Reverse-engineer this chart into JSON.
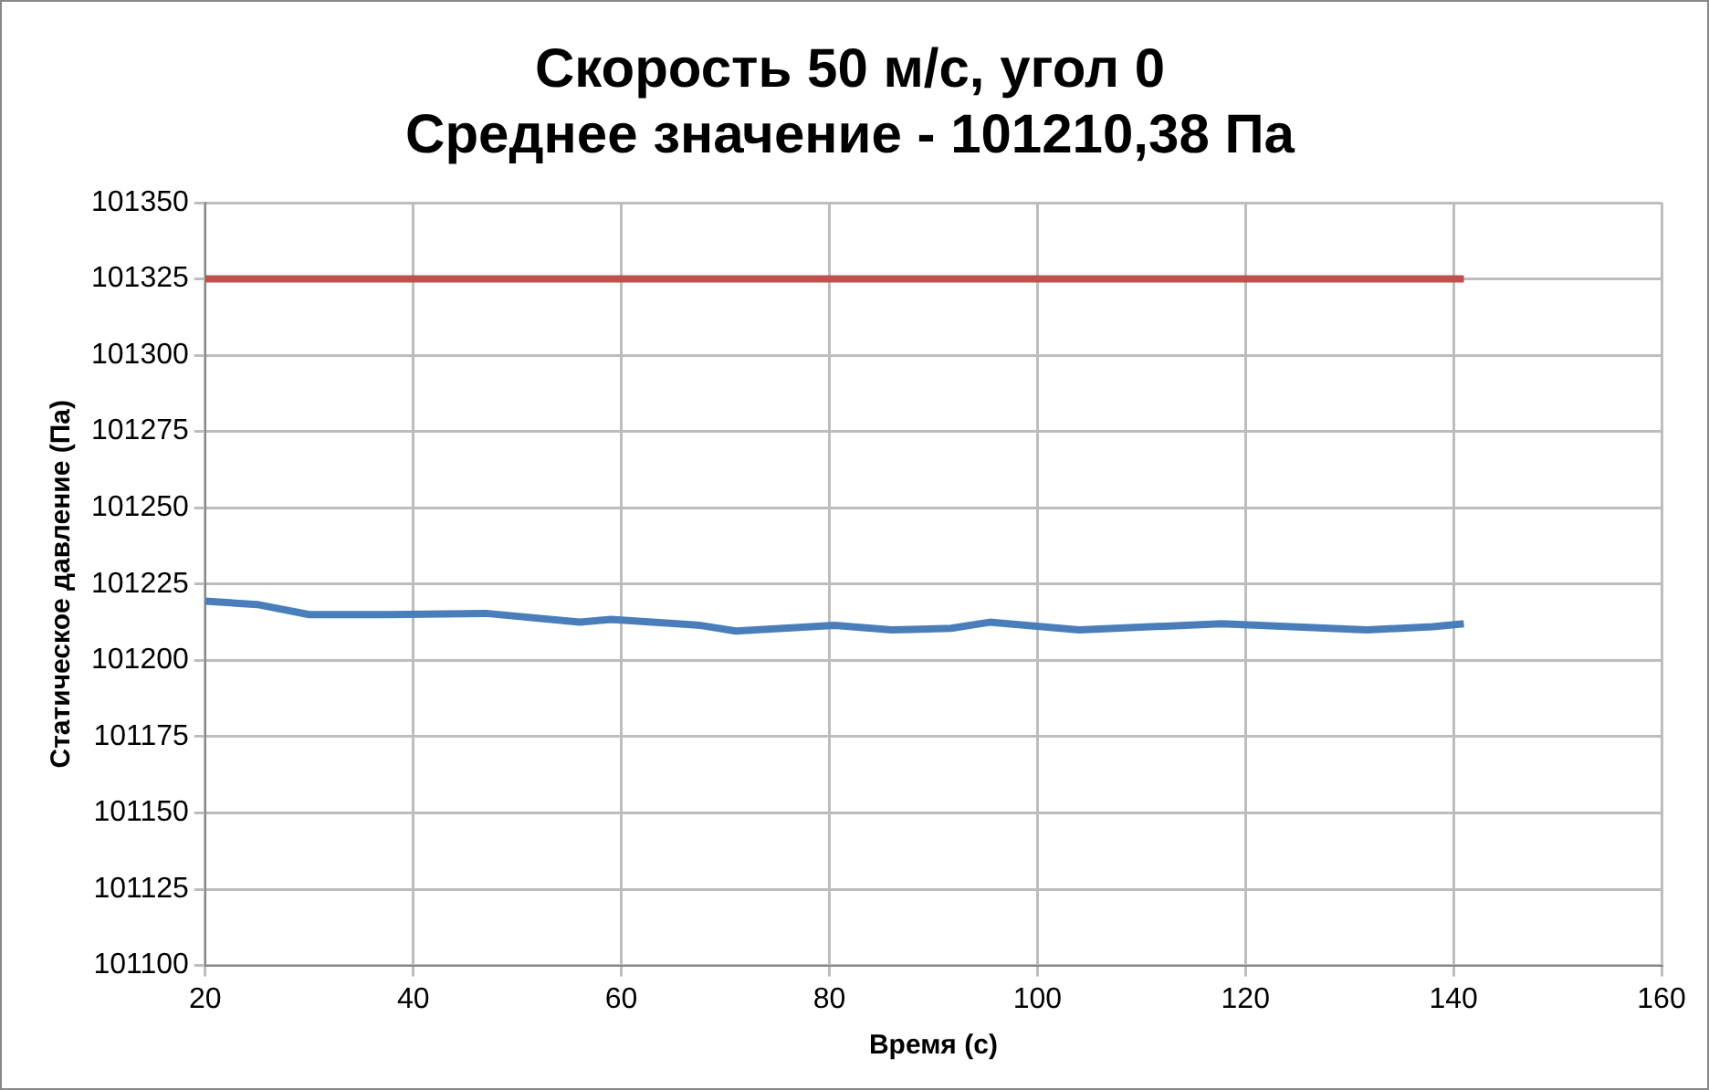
{
  "chart_data": {
    "type": "line",
    "title": "Скорость 50 м/с, угол 0",
    "subtitle": "Среднее значение - 101210,38 Па",
    "xlabel": "Время (с)",
    "ylabel": "Статическое давление (Па)",
    "xlim": [
      20,
      160
    ],
    "xticks": [
      20,
      40,
      60,
      80,
      100,
      120,
      140,
      160
    ],
    "ylim": [
      101100,
      101350
    ],
    "yticks": [
      101100,
      101125,
      101150,
      101175,
      101200,
      101225,
      101250,
      101275,
      101300,
      101325,
      101350
    ],
    "grid": true,
    "legend": false,
    "marker": "none",
    "line_style": "solid",
    "series": [
      {
        "color": "#4a7ebb",
        "x": [
          20,
          25,
          30,
          37.5,
          47,
          56,
          59,
          67.5,
          71,
          80.5,
          86,
          91.7,
          95.4,
          104,
          117.7,
          131.7,
          138,
          141
        ],
        "values": [
          101219.4,
          101218.3,
          101215,
          101215,
          101215.4,
          101212.5,
          101213.4,
          101211.5,
          101209.6,
          101211.5,
          101210,
          101210.5,
          101212.5,
          101210,
          101212,
          101210,
          101211,
          101212
        ]
      },
      {
        "color": "#c0504d",
        "x": [
          20,
          141
        ],
        "values": [
          101325,
          101325
        ]
      }
    ]
  }
}
